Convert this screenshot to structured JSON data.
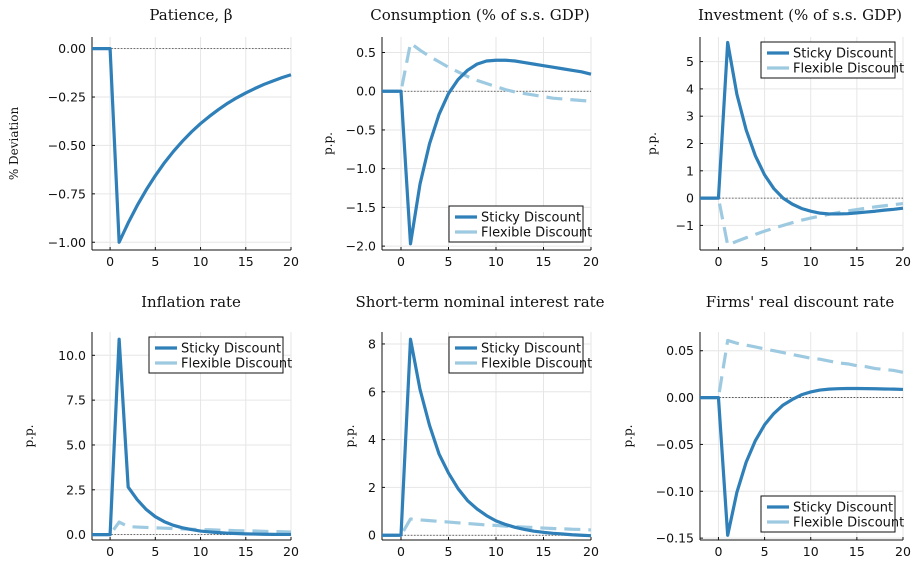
{
  "colors": {
    "sticky": "#2f7fb8",
    "flexible": "#9ecae1"
  },
  "chart_data": [
    {
      "type": "line",
      "title": "Patience, β",
      "ylabel": "% Deviation",
      "xlim": [
        -2,
        20
      ],
      "ylim": [
        -1.04,
        0.06
      ],
      "xticks": [
        0,
        5,
        10,
        15,
        20
      ],
      "yticks": [
        -1.0,
        -0.75,
        -0.5,
        -0.25,
        0.0
      ],
      "ytick_labels": [
        "−1.00",
        "−0.75",
        "−0.50",
        "−0.25",
        "0.00"
      ],
      "legend": null,
      "series": [
        {
          "key": "sticky",
          "dashed": false,
          "x": [
            -2,
            -1,
            0,
            1,
            2,
            3,
            4,
            5,
            6,
            7,
            8,
            9,
            10,
            11,
            12,
            13,
            14,
            15,
            16,
            17,
            18,
            19,
            20
          ],
          "y": [
            0,
            0,
            0,
            -1.0,
            -0.9,
            -0.81,
            -0.729,
            -0.656,
            -0.59,
            -0.531,
            -0.478,
            -0.43,
            -0.387,
            -0.349,
            -0.314,
            -0.282,
            -0.254,
            -0.229,
            -0.206,
            -0.185,
            -0.167,
            -0.15,
            -0.135
          ]
        }
      ]
    },
    {
      "type": "line",
      "title": "Consumption (% of s.s. GDP)",
      "ylabel": "p.p.",
      "xlim": [
        -2,
        20
      ],
      "ylim": [
        -2.05,
        0.7
      ],
      "xticks": [
        0,
        5,
        10,
        15,
        20
      ],
      "yticks": [
        -2.0,
        -1.5,
        -1.0,
        -0.5,
        0.0,
        0.5
      ],
      "ytick_labels": [
        "−2.0",
        "−1.5",
        "−1.0",
        "−0.5",
        "0.0",
        "0.5"
      ],
      "legend": {
        "placement": "bottom-right",
        "entries": [
          "Sticky Discount",
          "Flexible Discount"
        ]
      },
      "series": [
        {
          "key": "sticky",
          "name": "Sticky Discount",
          "dashed": false,
          "x": [
            -2,
            -1,
            0,
            1,
            2,
            3,
            4,
            5,
            6,
            7,
            8,
            9,
            10,
            11,
            12,
            13,
            14,
            15,
            16,
            17,
            18,
            19,
            20
          ],
          "y": [
            0,
            0,
            0,
            -1.97,
            -1.2,
            -0.68,
            -0.3,
            -0.03,
            0.15,
            0.27,
            0.35,
            0.39,
            0.4,
            0.4,
            0.39,
            0.37,
            0.35,
            0.33,
            0.31,
            0.29,
            0.27,
            0.25,
            0.22
          ]
        },
        {
          "key": "flexible",
          "name": "Flexible Discount",
          "dashed": true,
          "x": [
            -2,
            -1,
            0,
            1,
            2,
            3,
            4,
            5,
            6,
            7,
            8,
            9,
            10,
            11,
            12,
            13,
            14,
            15,
            16,
            17,
            18,
            19,
            20
          ],
          "y": [
            0,
            0,
            0,
            0.62,
            0.53,
            0.45,
            0.38,
            0.31,
            0.25,
            0.19,
            0.14,
            0.1,
            0.06,
            0.02,
            -0.01,
            -0.03,
            -0.05,
            -0.07,
            -0.09,
            -0.1,
            -0.11,
            -0.12,
            -0.13
          ]
        }
      ]
    },
    {
      "type": "line",
      "title": "Investment (% of s.s. GDP)",
      "ylabel": "p.p.",
      "xlim": [
        -2,
        20
      ],
      "ylim": [
        -1.9,
        5.9
      ],
      "xticks": [
        0,
        5,
        10,
        15,
        20
      ],
      "yticks": [
        -1,
        0,
        1,
        2,
        3,
        4,
        5
      ],
      "ytick_labels": [
        "−1",
        "0",
        "1",
        "2",
        "3",
        "4",
        "5"
      ],
      "legend": {
        "placement": "top-right",
        "entries": [
          "Sticky Discount",
          "Flexible Discount"
        ]
      },
      "series": [
        {
          "key": "sticky",
          "name": "Sticky Discount",
          "dashed": false,
          "x": [
            -2,
            -1,
            0,
            1,
            2,
            3,
            4,
            5,
            6,
            7,
            8,
            9,
            10,
            11,
            12,
            13,
            14,
            15,
            16,
            17,
            18,
            19,
            20
          ],
          "y": [
            0,
            0,
            0,
            5.7,
            3.8,
            2.5,
            1.55,
            0.85,
            0.35,
            0.0,
            -0.22,
            -0.38,
            -0.48,
            -0.55,
            -0.58,
            -0.58,
            -0.57,
            -0.54,
            -0.51,
            -0.48,
            -0.44,
            -0.41,
            -0.37
          ]
        },
        {
          "key": "flexible",
          "name": "Flexible Discount",
          "dashed": true,
          "x": [
            -2,
            -1,
            0,
            1,
            2,
            3,
            4,
            5,
            6,
            7,
            8,
            9,
            10,
            11,
            12,
            13,
            14,
            15,
            16,
            17,
            18,
            19,
            20
          ],
          "y": [
            0,
            0,
            0,
            -1.72,
            -1.58,
            -1.45,
            -1.33,
            -1.21,
            -1.1,
            -1.0,
            -0.9,
            -0.81,
            -0.73,
            -0.66,
            -0.59,
            -0.53,
            -0.47,
            -0.42,
            -0.37,
            -0.32,
            -0.28,
            -0.24,
            -0.2
          ]
        }
      ]
    },
    {
      "type": "line",
      "title": "Inflation rate",
      "ylabel": "p.p.",
      "xlim": [
        -2,
        20
      ],
      "ylim": [
        -0.3,
        11.3
      ],
      "xticks": [
        0,
        5,
        10,
        15,
        20
      ],
      "yticks": [
        0,
        2.5,
        5,
        7.5,
        10
      ],
      "ytick_labels": [
        "0.0",
        "2.5",
        "5.0",
        "7.5",
        "10.0"
      ],
      "legend": {
        "placement": "top-right",
        "entries": [
          "Sticky Discount",
          "Flexible Discount"
        ]
      },
      "series": [
        {
          "key": "sticky",
          "name": "Sticky Discount",
          "dashed": false,
          "x": [
            -2,
            -1,
            0,
            1,
            2,
            3,
            4,
            5,
            6,
            7,
            8,
            9,
            10,
            11,
            12,
            13,
            14,
            15,
            16,
            17,
            18,
            19,
            20
          ],
          "y": [
            0,
            0,
            0,
            10.9,
            2.65,
            1.95,
            1.4,
            1.0,
            0.72,
            0.52,
            0.38,
            0.28,
            0.2,
            0.15,
            0.11,
            0.08,
            0.06,
            0.04,
            0.03,
            0.02,
            0.015,
            0.01,
            0.01
          ]
        },
        {
          "key": "flexible",
          "name": "Flexible Discount",
          "dashed": true,
          "x": [
            -2,
            -1,
            0,
            1,
            2,
            3,
            4,
            5,
            6,
            7,
            8,
            9,
            10,
            11,
            12,
            13,
            14,
            15,
            16,
            17,
            18,
            19,
            20
          ],
          "y": [
            0,
            0,
            0,
            0.7,
            0.45,
            0.42,
            0.4,
            0.38,
            0.36,
            0.34,
            0.32,
            0.3,
            0.28,
            0.27,
            0.25,
            0.24,
            0.22,
            0.21,
            0.2,
            0.18,
            0.17,
            0.16,
            0.15
          ]
        }
      ]
    },
    {
      "type": "line",
      "title": "Short-term nominal interest rate",
      "ylabel": "p.p.",
      "xlim": [
        -2,
        20
      ],
      "ylim": [
        -0.2,
        8.5
      ],
      "xticks": [
        0,
        5,
        10,
        15,
        20
      ],
      "yticks": [
        0,
        2,
        4,
        6,
        8
      ],
      "ytick_labels": [
        "0",
        "2",
        "4",
        "6",
        "8"
      ],
      "legend": {
        "placement": "top-right",
        "entries": [
          "Sticky Discount",
          "Flexible Discount"
        ]
      },
      "series": [
        {
          "key": "sticky",
          "name": "Sticky Discount",
          "dashed": false,
          "x": [
            -2,
            -1,
            0,
            1,
            2,
            3,
            4,
            5,
            6,
            7,
            8,
            9,
            10,
            11,
            12,
            13,
            14,
            15,
            16,
            17,
            18,
            19,
            20
          ],
          "y": [
            0,
            0,
            0,
            8.2,
            6.1,
            4.6,
            3.4,
            2.6,
            1.95,
            1.45,
            1.1,
            0.82,
            0.6,
            0.45,
            0.33,
            0.24,
            0.17,
            0.12,
            0.08,
            0.05,
            0.02,
            0.0,
            -0.02
          ]
        },
        {
          "key": "flexible",
          "name": "Flexible Discount",
          "dashed": true,
          "x": [
            -2,
            -1,
            0,
            1,
            2,
            3,
            4,
            5,
            6,
            7,
            8,
            9,
            10,
            11,
            12,
            13,
            14,
            15,
            16,
            17,
            18,
            19,
            20
          ],
          "y": [
            0,
            0,
            0,
            0.68,
            0.64,
            0.61,
            0.58,
            0.55,
            0.52,
            0.49,
            0.46,
            0.43,
            0.41,
            0.38,
            0.36,
            0.34,
            0.32,
            0.3,
            0.28,
            0.27,
            0.25,
            0.24,
            0.22
          ]
        }
      ]
    },
    {
      "type": "line",
      "title": "Firms' real discount rate",
      "ylabel": "p.p.",
      "xlim": [
        -2,
        20
      ],
      "ylim": [
        -0.152,
        0.07
      ],
      "xticks": [
        0,
        5,
        10,
        15,
        20
      ],
      "yticks": [
        -0.15,
        -0.1,
        -0.05,
        0.0,
        0.05
      ],
      "ytick_labels": [
        "−0.15",
        "−0.10",
        "−0.05",
        "0.00",
        "0.05"
      ],
      "legend": {
        "placement": "bottom-right",
        "entries": [
          "Sticky Discount",
          "Flexible Discount"
        ]
      },
      "series": [
        {
          "key": "sticky",
          "name": "Sticky Discount",
          "dashed": false,
          "x": [
            -2,
            -1,
            0,
            1,
            2,
            3,
            4,
            5,
            6,
            7,
            8,
            9,
            10,
            11,
            12,
            13,
            14,
            15,
            16,
            17,
            18,
            19,
            20
          ],
          "y": [
            0,
            0,
            0,
            -0.147,
            -0.101,
            -0.069,
            -0.046,
            -0.029,
            -0.017,
            -0.008,
            -0.002,
            0.003,
            0.006,
            0.008,
            0.009,
            0.0095,
            0.0097,
            0.0097,
            0.0096,
            0.0094,
            0.0092,
            0.009,
            0.0087
          ]
        },
        {
          "key": "flexible",
          "name": "Flexible Discount",
          "dashed": true,
          "x": [
            -2,
            -1,
            0,
            1,
            2,
            3,
            4,
            5,
            6,
            7,
            8,
            9,
            10,
            11,
            12,
            13,
            14,
            15,
            16,
            17,
            18,
            19,
            20
          ],
          "y": [
            0,
            0,
            0,
            0.061,
            0.058,
            0.056,
            0.054,
            0.052,
            0.05,
            0.048,
            0.046,
            0.044,
            0.042,
            0.041,
            0.039,
            0.037,
            0.036,
            0.034,
            0.033,
            0.031,
            0.03,
            0.029,
            0.027
          ]
        }
      ]
    }
  ]
}
